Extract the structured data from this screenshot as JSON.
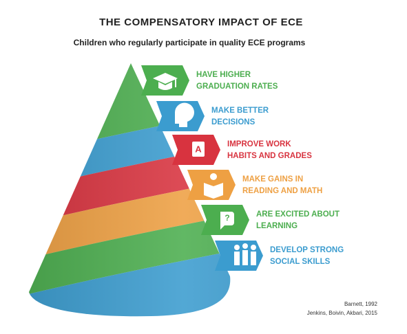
{
  "header": {
    "title": "THE COMPENSATORY IMPACT OF ECE",
    "subtitle": "Children who regularly participate in quality ECE programs"
  },
  "items": [
    {
      "lines": [
        "HAVE HIGHER",
        "GRADUATION RATES"
      ],
      "color": "#4cae4f"
    },
    {
      "lines": [
        "MAKE BETTER",
        "DECISIONS"
      ],
      "color": "#3b9ccf"
    },
    {
      "lines": [
        "IMPROVE WORK",
        "HABITS AND GRADES"
      ],
      "color": "#d8333f"
    },
    {
      "lines": [
        "MAKE GAINS IN",
        "READING AND MATH"
      ],
      "color": "#eea043"
    },
    {
      "lines": [
        "ARE EXCITED ABOUT",
        "LEARNING"
      ],
      "color": "#4cae4f"
    },
    {
      "lines": [
        "DEVELOP STRONG",
        "SOCIAL SKILLS"
      ],
      "color": "#3b9ccf"
    }
  ],
  "sources": [
    "Barnett, 1992",
    "Jenkins, Boivin, Akbari, 2015"
  ]
}
